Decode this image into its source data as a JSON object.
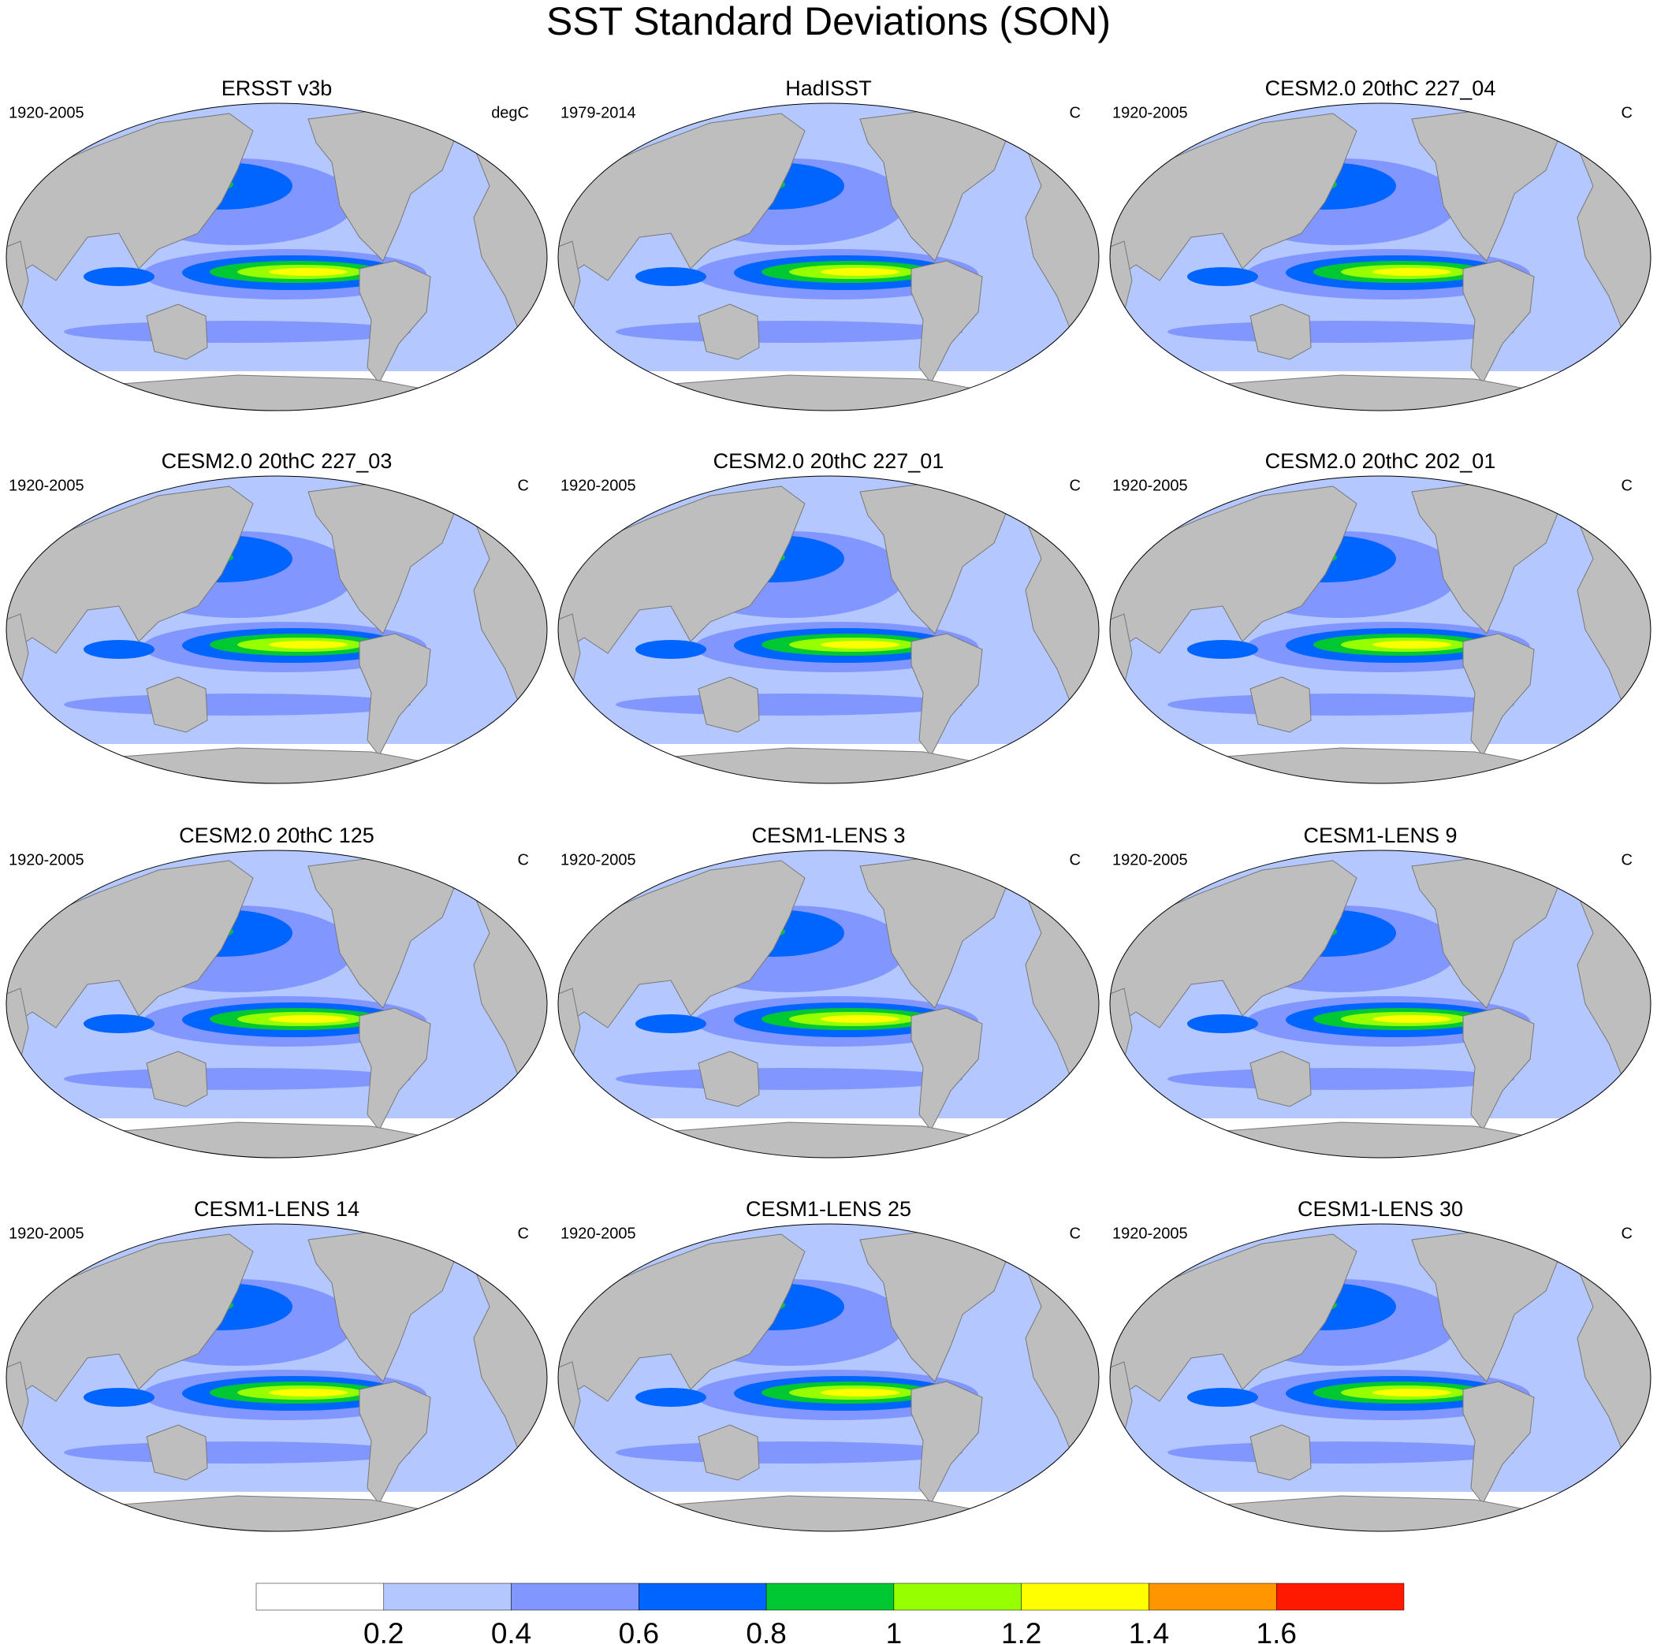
{
  "title": "SST Standard Deviations (SON)",
  "panels": [
    {
      "title": "ERSST v3b",
      "period": "1920-2005",
      "units": "degC"
    },
    {
      "title": "HadISST",
      "period": "1979-2014",
      "units": "C"
    },
    {
      "title": "CESM2.0 20thC 227_04",
      "period": "1920-2005",
      "units": "C"
    },
    {
      "title": "CESM2.0 20thC 227_03",
      "period": "1920-2005",
      "units": "C"
    },
    {
      "title": "CESM2.0 20thC 227_01",
      "period": "1920-2005",
      "units": "C"
    },
    {
      "title": "CESM2.0 20thC 202_01",
      "period": "1920-2005",
      "units": "C"
    },
    {
      "title": "CESM2.0 20thC 125",
      "period": "1920-2005",
      "units": "C"
    },
    {
      "title": "CESM1-LENS 3",
      "period": "1920-2005",
      "units": "C"
    },
    {
      "title": "CESM1-LENS 9",
      "period": "1920-2005",
      "units": "C"
    },
    {
      "title": "CESM1-LENS 14",
      "period": "1920-2005",
      "units": "C"
    },
    {
      "title": "CESM1-LENS 25",
      "period": "1920-2005",
      "units": "C"
    },
    {
      "title": "CESM1-LENS 30",
      "period": "1920-2005",
      "units": "C"
    }
  ],
  "colorbar": {
    "colors": [
      "#ffffff",
      "#b4c8ff",
      "#8296ff",
      "#0064ff",
      "#00c832",
      "#96ff00",
      "#ffff00",
      "#ff9600",
      "#ff1900"
    ],
    "labels": [
      0.2,
      0.4,
      0.6,
      0.8,
      1,
      1.2,
      1.4,
      1.6
    ]
  }
}
